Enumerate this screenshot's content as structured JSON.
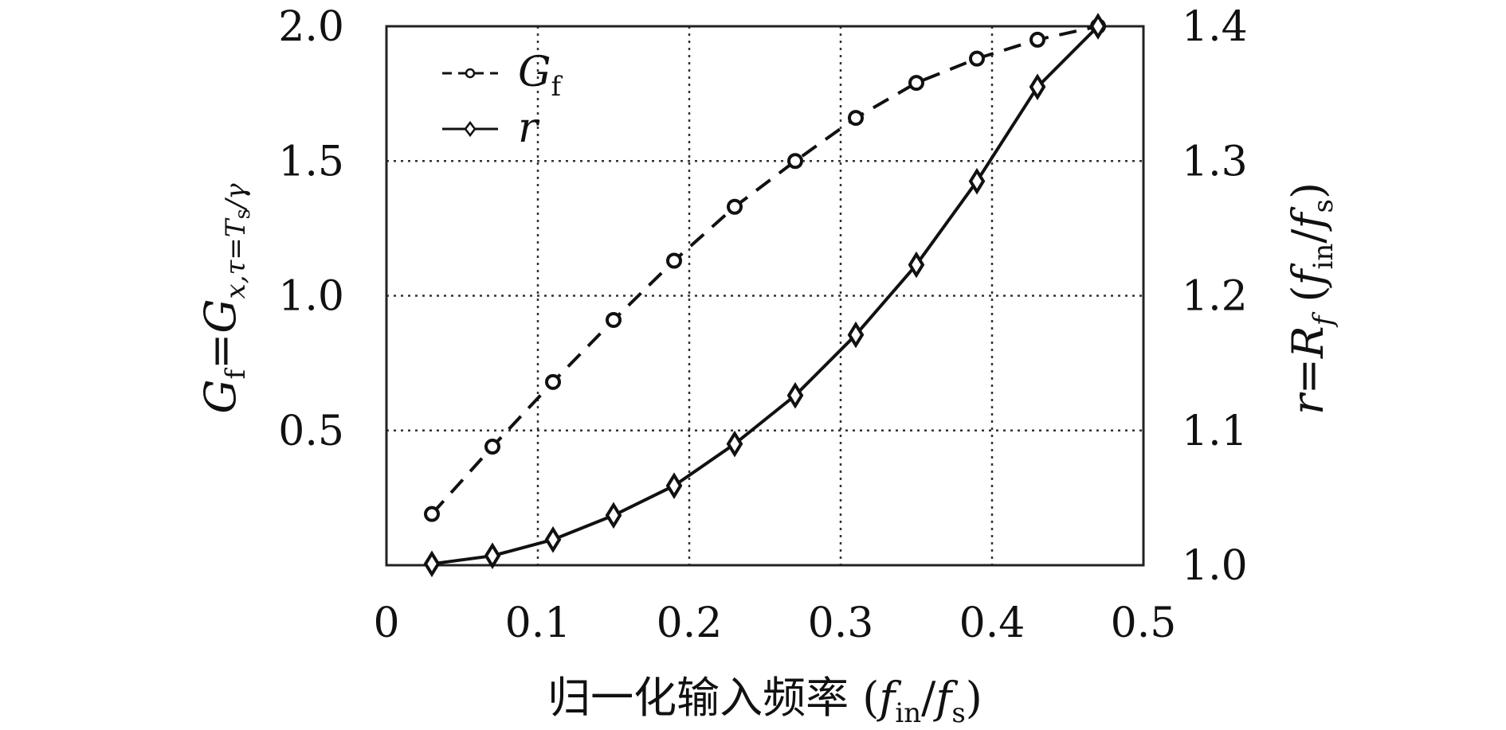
{
  "chart_data": {
    "type": "line",
    "xlabel": "归一化输入频率 (f_in/f_s)",
    "ylabel_left": "G_f = G_x,τ=T_s/γ",
    "ylabel_right": "r = R_f (f_in/f_s)",
    "xlim": [
      0,
      0.5
    ],
    "ylim_left": [
      0,
      2.0
    ],
    "ylim_right": [
      1.0,
      1.4
    ],
    "x_ticks": [
      "0",
      "0.1",
      "0.2",
      "0.3",
      "0.4",
      "0.5"
    ],
    "y_left_ticks": [
      "0.5",
      "1.0",
      "1.5",
      "2.0"
    ],
    "y_right_ticks": [
      "1.0",
      "1.1",
      "1.2",
      "1.3",
      "1.4"
    ],
    "grid": true,
    "legend_position": "top-left",
    "series": [
      {
        "name": "G_f",
        "axis": "left",
        "style": "dashed",
        "marker": "circle",
        "x": [
          0.03,
          0.07,
          0.11,
          0.15,
          0.19,
          0.23,
          0.27,
          0.31,
          0.35,
          0.39,
          0.43,
          0.47
        ],
        "values": [
          0.19,
          0.44,
          0.68,
          0.91,
          1.13,
          1.33,
          1.5,
          1.66,
          1.79,
          1.88,
          1.95,
          2.0
        ]
      },
      {
        "name": "r",
        "axis": "right",
        "style": "solid",
        "marker": "diamond",
        "x": [
          0.03,
          0.07,
          0.11,
          0.15,
          0.19,
          0.23,
          0.27,
          0.31,
          0.35,
          0.39,
          0.43,
          0.47
        ],
        "values": [
          1.001,
          1.007,
          1.019,
          1.037,
          1.059,
          1.09,
          1.126,
          1.171,
          1.223,
          1.285,
          1.355,
          1.4
        ]
      }
    ]
  }
}
